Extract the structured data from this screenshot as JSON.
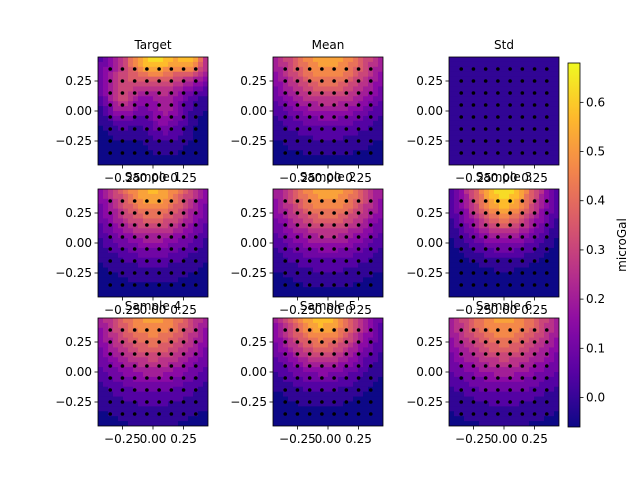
{
  "figure": {
    "colorbar": {
      "label": "microGal",
      "ticks": [
        0.0,
        0.1,
        0.2,
        0.3,
        0.4,
        0.5,
        0.6
      ],
      "range": [
        -0.06,
        0.68
      ],
      "colormap": "plasma"
    }
  },
  "chart_data": [
    {
      "type": "heatmap",
      "title": "Target",
      "xticks": [
        "−0.25",
        "0.00",
        "0.25"
      ],
      "yticks": [
        "0.25",
        "0.00",
        "−0.25"
      ],
      "xlim": [
        -0.45,
        0.45
      ],
      "ylim": [
        -0.45,
        0.45
      ],
      "sensor_grid": "8x8 points"
    },
    {
      "type": "heatmap",
      "title": "Mean",
      "xticks": [
        "−0.25",
        "0.00",
        "0.25"
      ],
      "yticks": [
        "0.25",
        "0.00",
        "−0.25"
      ],
      "xlim": [
        -0.45,
        0.45
      ],
      "ylim": [
        -0.45,
        0.45
      ],
      "sensor_grid": "8x8 points"
    },
    {
      "type": "heatmap",
      "title": "Std",
      "xticks": [
        "−0.25",
        "0.00",
        "0.25"
      ],
      "yticks": [
        "0.25",
        "0.00",
        "−0.25"
      ],
      "xlim": [
        -0.45,
        0.45
      ],
      "ylim": [
        -0.45,
        0.45
      ],
      "sensor_grid": "8x8 points"
    },
    {
      "type": "heatmap",
      "title": "Sample 1",
      "xticks": [
        "−0.25",
        "0.00",
        "0.25"
      ],
      "yticks": [
        "0.25",
        "0.00",
        "−0.25"
      ],
      "xlim": [
        -0.45,
        0.45
      ],
      "ylim": [
        -0.45,
        0.45
      ],
      "sensor_grid": "8x8 points"
    },
    {
      "type": "heatmap",
      "title": "Sample 2",
      "xticks": [
        "−0.25",
        "0.00",
        "0.25"
      ],
      "yticks": [
        "0.25",
        "0.00",
        "−0.25"
      ],
      "xlim": [
        -0.45,
        0.45
      ],
      "ylim": [
        -0.45,
        0.45
      ],
      "sensor_grid": "8x8 points"
    },
    {
      "type": "heatmap",
      "title": "Sample 3",
      "xticks": [
        "−0.25",
        "0.00",
        "0.25"
      ],
      "yticks": [
        "0.25",
        "0.00",
        "−0.25"
      ],
      "xlim": [
        -0.45,
        0.45
      ],
      "ylim": [
        -0.45,
        0.45
      ],
      "sensor_grid": "8x8 points"
    },
    {
      "type": "heatmap",
      "title": "Sample 4",
      "xticks": [
        "−0.25",
        "0.00",
        "0.25"
      ],
      "yticks": [
        "0.25",
        "0.00",
        "−0.25"
      ],
      "xlim": [
        -0.45,
        0.45
      ],
      "ylim": [
        -0.45,
        0.45
      ],
      "sensor_grid": "8x8 points"
    },
    {
      "type": "heatmap",
      "title": "Sample 5",
      "xticks": [
        "−0.25",
        "0.00",
        "0.25"
      ],
      "yticks": [
        "0.25",
        "0.00",
        "−0.25"
      ],
      "xlim": [
        -0.45,
        0.45
      ],
      "ylim": [
        -0.45,
        0.45
      ],
      "sensor_grid": "8x8 points"
    },
    {
      "type": "heatmap",
      "title": "Sample 6",
      "xticks": [
        "−0.25",
        "0.00",
        "0.25"
      ],
      "yticks": [
        "0.25",
        "0.00",
        "−0.25"
      ],
      "xlim": [
        -0.45,
        0.45
      ],
      "ylim": [
        -0.45,
        0.45
      ],
      "sensor_grid": "8x8 points"
    }
  ]
}
